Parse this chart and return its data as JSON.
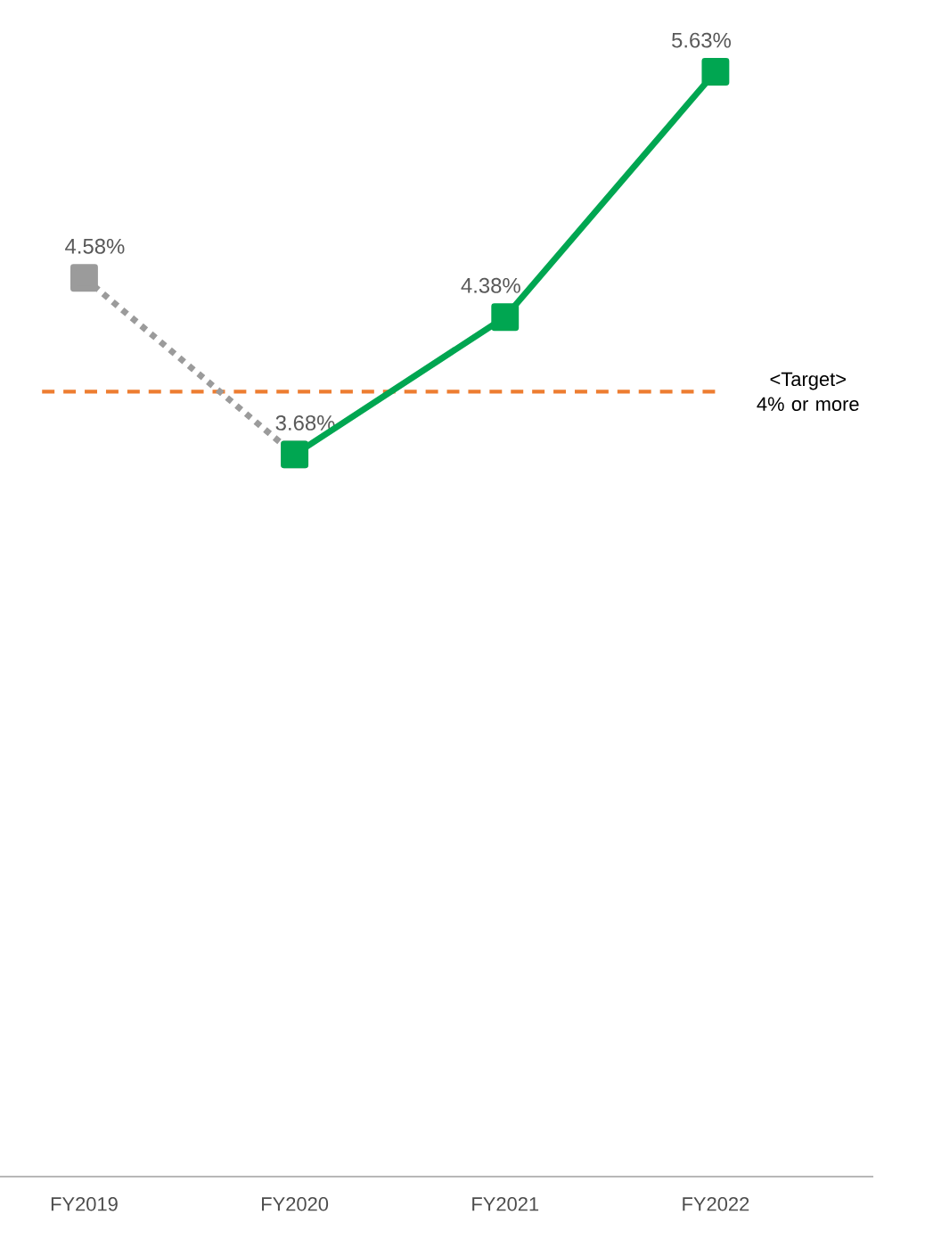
{
  "chart_data": {
    "type": "line",
    "categories": [
      "FY2019",
      "FY2020",
      "FY2021",
      "FY2022"
    ],
    "marker": "square",
    "series": [
      {
        "color": "#9b9b9b",
        "line_style": "dotted",
        "values": [
          4.58,
          3.68,
          null,
          null
        ],
        "value_labels": [
          "4.58%",
          "3.68%",
          null,
          null
        ]
      },
      {
        "color": "#00a651",
        "line_style": "solid",
        "values": [
          null,
          3.68,
          4.38,
          5.63
        ],
        "value_labels": [
          null,
          null,
          "4.38%",
          "5.63%"
        ]
      }
    ],
    "ref_lines": [
      {
        "axis": "y",
        "value": 4,
        "label": "<Target> 4% or more",
        "color": "#ed7d31",
        "line_style": "dashed"
      }
    ]
  }
}
